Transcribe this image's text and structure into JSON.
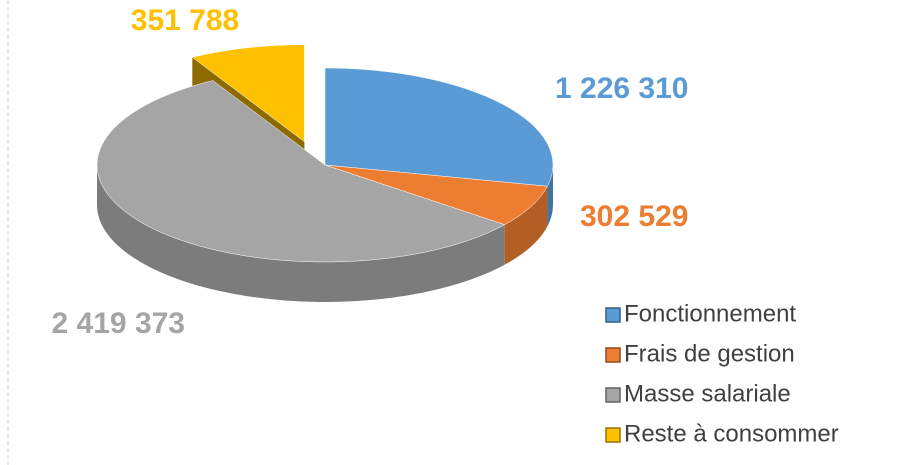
{
  "chart_data": {
    "type": "pie",
    "categories": [
      "Fonctionnement",
      "Frais de gestion",
      "Masse salariale",
      "Reste à consommer"
    ],
    "values": [
      1226310,
      302529,
      2419373,
      351788
    ],
    "value_labels": [
      "1 226 310",
      "302 529",
      "2 419 373",
      "351 788"
    ],
    "colors": [
      "#5b9bd5",
      "#ed7d31",
      "#a5a5a5",
      "#ffc000"
    ]
  }
}
